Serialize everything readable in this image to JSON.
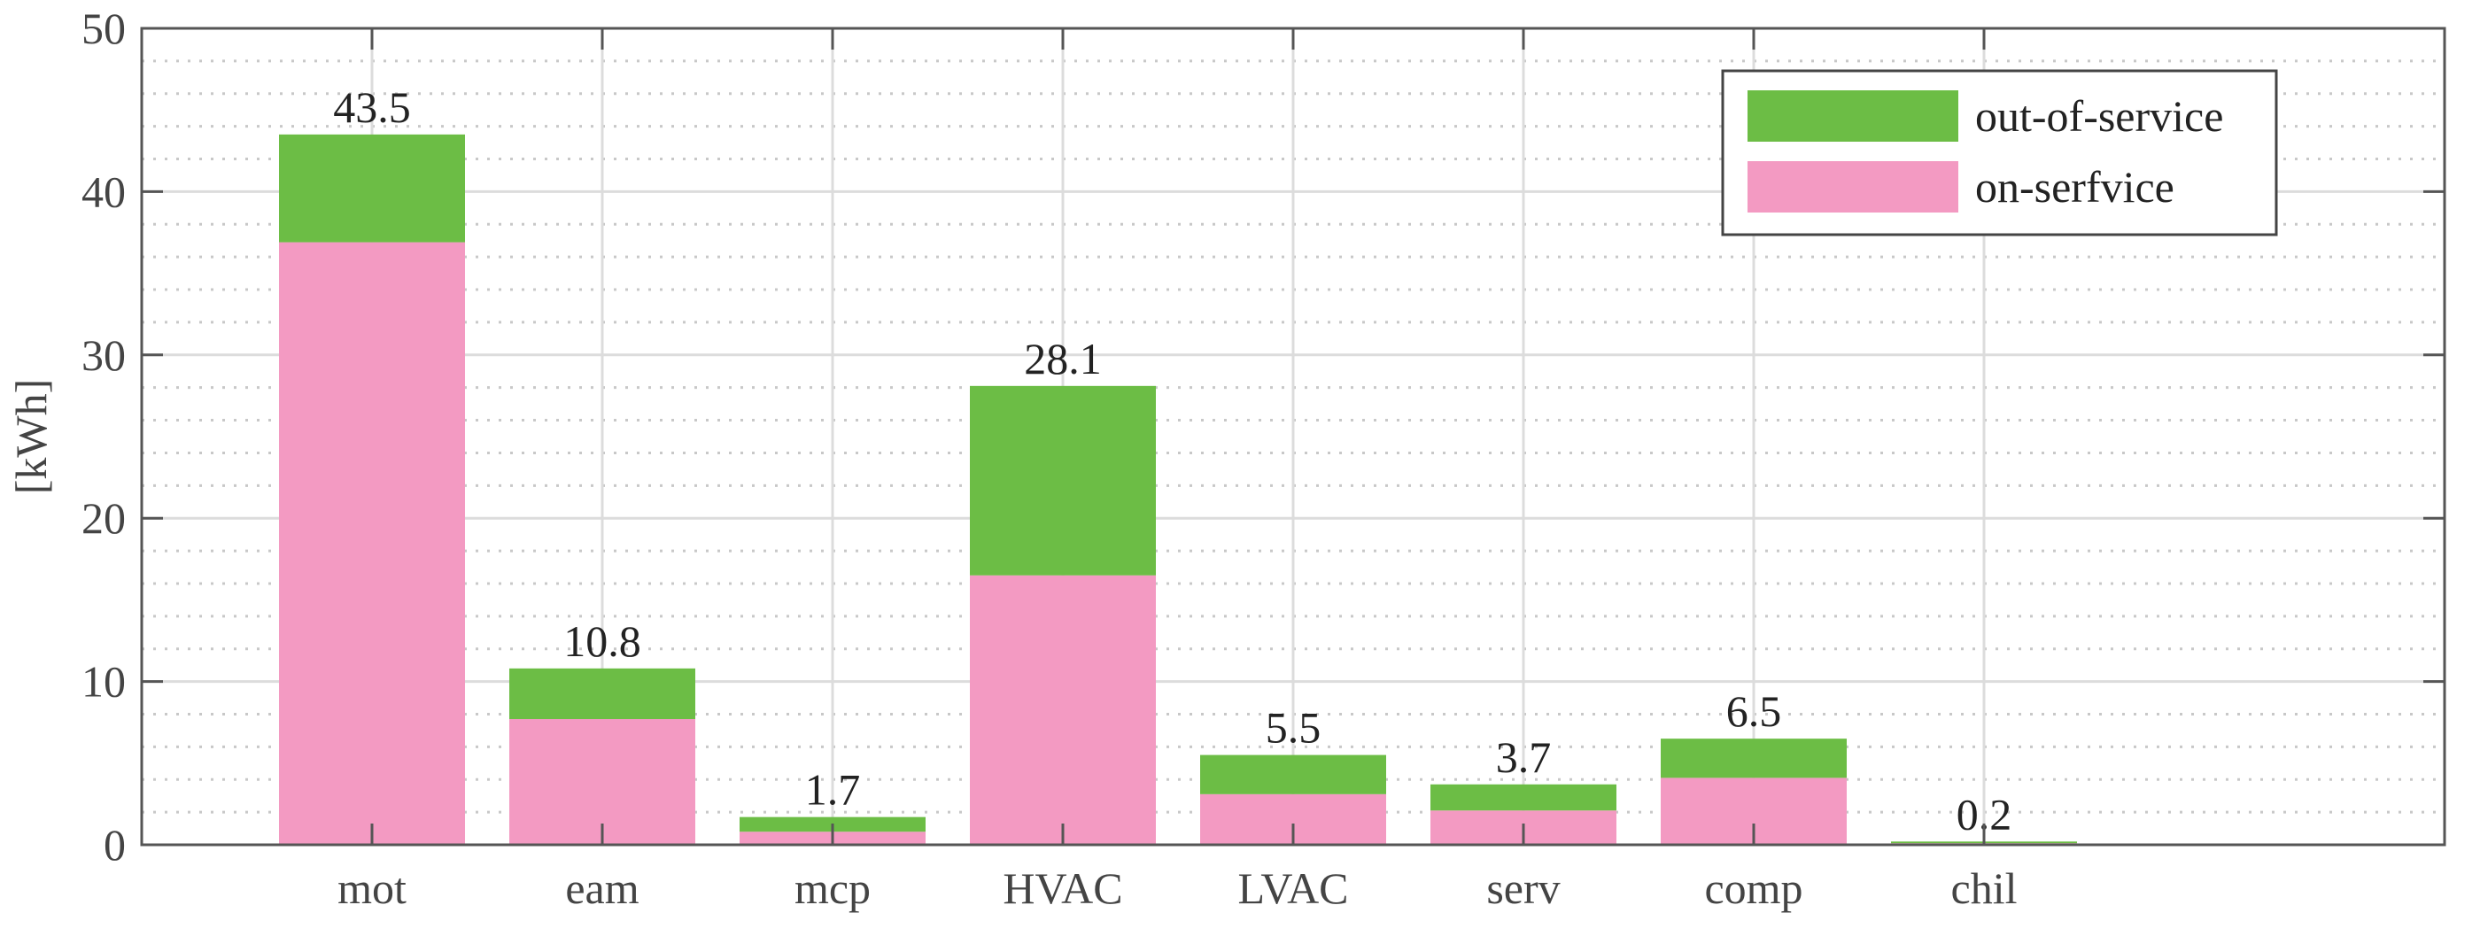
{
  "chart_data": {
    "type": "bar",
    "stacked": true,
    "categories": [
      "mot",
      "eam",
      "mcp",
      "HVAC",
      "LVAC",
      "serv",
      "comp",
      "chil"
    ],
    "series": [
      {
        "name": "on-serfvice",
        "color": "#f39ac2",
        "values": [
          36.9,
          7.7,
          0.8,
          16.5,
          3.1,
          2.1,
          4.1,
          0.1
        ]
      },
      {
        "name": "out-of-service",
        "color": "#6cbd45",
        "values": [
          6.6,
          3.1,
          0.9,
          11.6,
          2.4,
          1.6,
          2.4,
          0.1
        ]
      }
    ],
    "totals": [
      "43.5",
      "10.8",
      "1.7",
      "28.1",
      "5.5",
      "3.7",
      "6.5",
      "0.2"
    ],
    "ylabel": "[kWh]",
    "xlabel": "",
    "ylim": [
      0,
      50
    ],
    "yticks": [
      0,
      10,
      20,
      30,
      40,
      50
    ],
    "x_slots": 10,
    "grid": {
      "major": true,
      "minor": true
    },
    "legend": {
      "position": "top-right",
      "order": [
        "out-of-service",
        "on-serfvice"
      ]
    }
  }
}
